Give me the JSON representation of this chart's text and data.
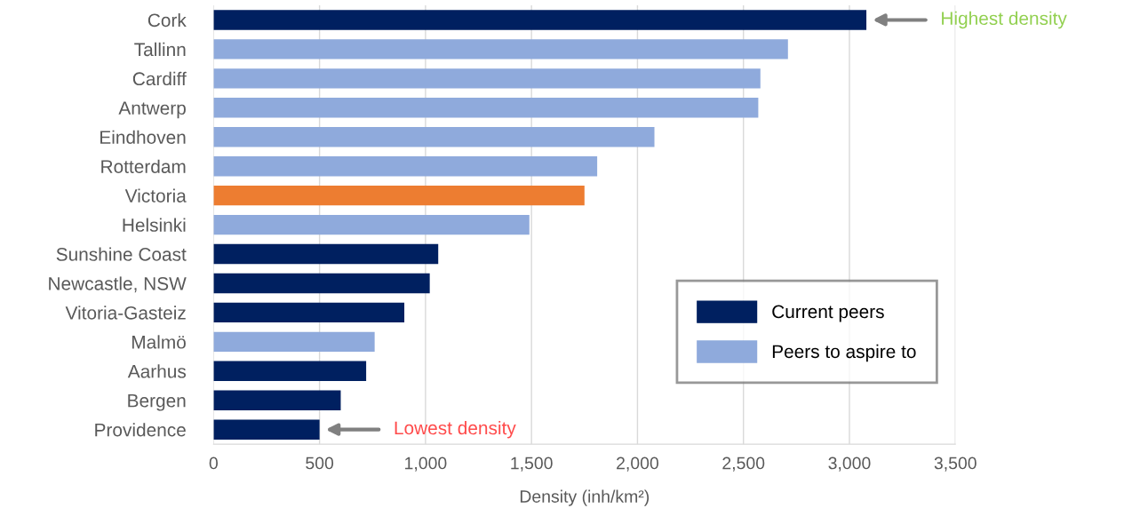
{
  "chart_data": {
    "type": "bar",
    "orientation": "horizontal",
    "xlabel": "Density (inh/km²)",
    "categories": [
      "Cork",
      "Tallinn",
      "Cardiff",
      "Antwerp",
      "Eindhoven",
      "Rotterdam",
      "Victoria",
      "Helsinki",
      "Sunshine Coast",
      "Newcastle, NSW",
      "Vitoria-Gasteiz",
      "Malmö",
      "Aarhus",
      "Bergen",
      "Providence"
    ],
    "series": [
      {
        "name": "Current peers",
        "color": "#002060",
        "values": [
          3080,
          null,
          null,
          null,
          null,
          null,
          null,
          null,
          1060,
          1020,
          900,
          null,
          720,
          600,
          500
        ]
      },
      {
        "name": "Peers to aspire to",
        "color": "#8faadc",
        "values": [
          null,
          2710,
          2580,
          2570,
          2080,
          1810,
          null,
          1490,
          null,
          null,
          null,
          760,
          null,
          null,
          null
        ]
      },
      {
        "color": "#ed7d31",
        "values": [
          null,
          null,
          null,
          null,
          null,
          null,
          1750,
          null,
          null,
          null,
          null,
          null,
          null,
          null,
          null
        ]
      }
    ],
    "xlim": [
      0,
      3500
    ],
    "xticks": [
      {
        "value": 0,
        "label": "0"
      },
      {
        "value": 500,
        "label": "500"
      },
      {
        "value": 1000,
        "label": "1,000"
      },
      {
        "value": 1500,
        "label": "1,500"
      },
      {
        "value": 2000,
        "label": "2,000"
      },
      {
        "value": 2500,
        "label": "2,500"
      },
      {
        "value": 3000,
        "label": "3,000"
      },
      {
        "value": 3500,
        "label": "3,500"
      }
    ],
    "grid": "x",
    "legend": "bottom right",
    "annotations": [
      "Highest density",
      "Lowest density"
    ]
  }
}
